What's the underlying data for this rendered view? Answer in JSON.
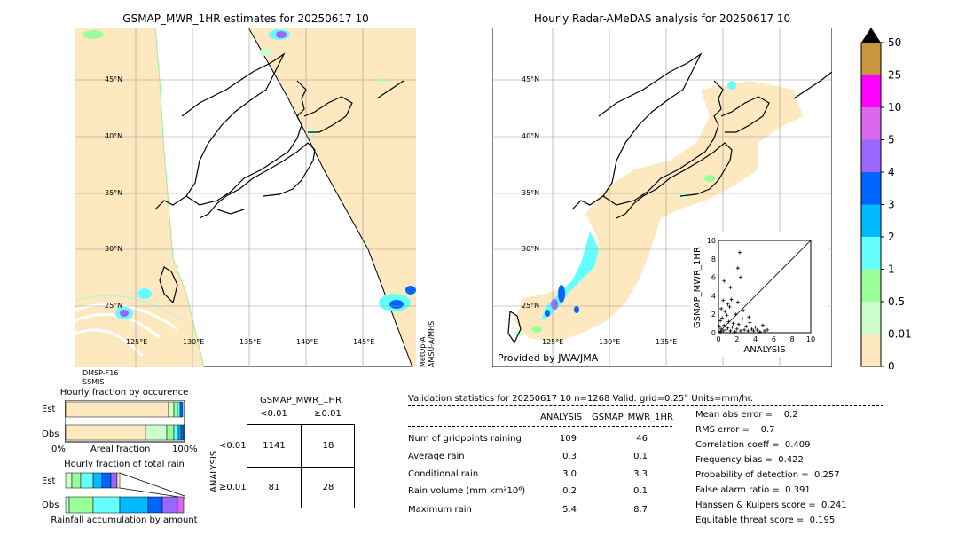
{
  "left_map": {
    "title": "GSMAP_MWR_1HR estimates for 20250617 10",
    "lat_labels": [
      "45°N",
      "40°N",
      "35°N",
      "30°N",
      "25°N"
    ],
    "lon_labels": [
      "125°E",
      "130°E",
      "135°E",
      "140°E",
      "145°E"
    ],
    "sensor_left": [
      "DMSP-F16",
      "SSMIS"
    ],
    "sensor_right": [
      "MetOp-A",
      "AMSU-A/MHS"
    ]
  },
  "right_map": {
    "title": "Hourly Radar-AMeDAS analysis for 20250617 10",
    "lat_labels": [
      "45°N",
      "40°N",
      "35°N",
      "30°N",
      "25°N"
    ],
    "lon_labels": [
      "125°E",
      "130°E",
      "135°E"
    ],
    "credit": "Provided by JWA/JMA"
  },
  "colorbar": {
    "labels": [
      "50",
      "25",
      "10",
      "5",
      "4",
      "3",
      "2",
      "1",
      "0.5",
      "0.01",
      "0"
    ],
    "colors": [
      "#c8963c",
      "#ff00ff",
      "#dd66ee",
      "#9966ff",
      "#0066ff",
      "#00bbff",
      "#66ffff",
      "#99ff99",
      "#ccffcc",
      "#fde8c0"
    ]
  },
  "frac_occurrence": {
    "title": "Hourly fraction by occurence",
    "rows": [
      "Est",
      "Obs"
    ],
    "x_left": "0%",
    "x_mid": "Areal fraction",
    "x_right": "100%"
  },
  "frac_total": {
    "title": "Hourly fraction of total rain",
    "rows": [
      "Est",
      "Obs"
    ],
    "xlabel": "Rainfall accumulation by amount"
  },
  "contingency": {
    "title": "GSMAP_MWR_1HR",
    "col_headers": [
      "<0.01",
      "≥0.01"
    ],
    "row_axis": "ANALYSIS",
    "row_headers": [
      "<0.01",
      "≥0.01"
    ],
    "cells": [
      [
        "1141",
        "18"
      ],
      [
        "81",
        "28"
      ]
    ]
  },
  "validation": {
    "header": "Validation statistics for 20250617 10  n=1268 Valid. grid=0.25° Units=mm/hr.",
    "col_analysis": "ANALYSIS",
    "col_est": "GSMAP_MWR_1HR",
    "rows": [
      {
        "label": "Num of gridpoints raining",
        "analysis": "109",
        "est": "46"
      },
      {
        "label": "Average rain",
        "analysis": "0.3",
        "est": "0.1"
      },
      {
        "label": "Conditional rain",
        "analysis": "3.0",
        "est": "3.3"
      },
      {
        "label": "Rain volume (mm km²10⁶)",
        "analysis": "0.2",
        "est": "0.1"
      },
      {
        "label": "Maximum rain",
        "analysis": "5.4",
        "est": "8.7"
      }
    ],
    "scores": [
      "Mean abs error =    0.2",
      "RMS error =    0.7",
      "Correlation coeff =  0.409",
      "Frequency bias =  0.422",
      "Probability of detection =  0.257",
      "False alarm ratio =  0.391",
      "Hanssen & Kuipers score =  0.241",
      "Equitable threat score =  0.195"
    ]
  },
  "chart_data": {
    "type": "scatter",
    "title": "",
    "xlabel": "ANALYSIS",
    "ylabel": "GSMAP_MWR_1HR",
    "xlim": [
      0,
      10
    ],
    "ylim": [
      0,
      10
    ],
    "x_ticks": [
      "0",
      "2",
      "4",
      "6",
      "8",
      "10"
    ],
    "y_ticks": [
      "0",
      "2",
      "4",
      "6",
      "8",
      "10"
    ],
    "points": [
      [
        0.2,
        0.1
      ],
      [
        0.3,
        0.4
      ],
      [
        0.5,
        0.2
      ],
      [
        0.6,
        0.8
      ],
      [
        0.8,
        0.3
      ],
      [
        1.0,
        0.5
      ],
      [
        1.1,
        1.2
      ],
      [
        1.3,
        0.2
      ],
      [
        1.5,
        0.6
      ],
      [
        1.6,
        1.0
      ],
      [
        1.8,
        0.1
      ],
      [
        2.0,
        0.4
      ],
      [
        2.2,
        0.9
      ],
      [
        2.4,
        0.2
      ],
      [
        2.6,
        1.5
      ],
      [
        2.8,
        0.3
      ],
      [
        3.0,
        0.7
      ],
      [
        3.2,
        0.2
      ],
      [
        3.4,
        1.1
      ],
      [
        3.6,
        0.4
      ],
      [
        3.8,
        0.2
      ],
      [
        4.0,
        0.6
      ],
      [
        4.2,
        0.3
      ],
      [
        4.5,
        0.1
      ],
      [
        4.8,
        0.8
      ],
      [
        5.0,
        0.2
      ],
      [
        5.3,
        0.3
      ],
      [
        0.4,
        1.6
      ],
      [
        0.7,
        2.3
      ],
      [
        0.9,
        1.9
      ],
      [
        1.2,
        2.8
      ],
      [
        0.5,
        3.5
      ],
      [
        1.0,
        3.1
      ],
      [
        1.4,
        3.6
      ],
      [
        2.1,
        3.3
      ],
      [
        0.6,
        5.6
      ],
      [
        1.3,
        4.9
      ],
      [
        2.1,
        7.0
      ],
      [
        2.3,
        8.7
      ],
      [
        2.4,
        6.0
      ],
      [
        0.3,
        2.6
      ],
      [
        1.9,
        2.0
      ],
      [
        2.7,
        2.4
      ],
      [
        3.3,
        1.7
      ],
      [
        0.2,
        1.3
      ],
      [
        0.1,
        0.7
      ]
    ]
  }
}
